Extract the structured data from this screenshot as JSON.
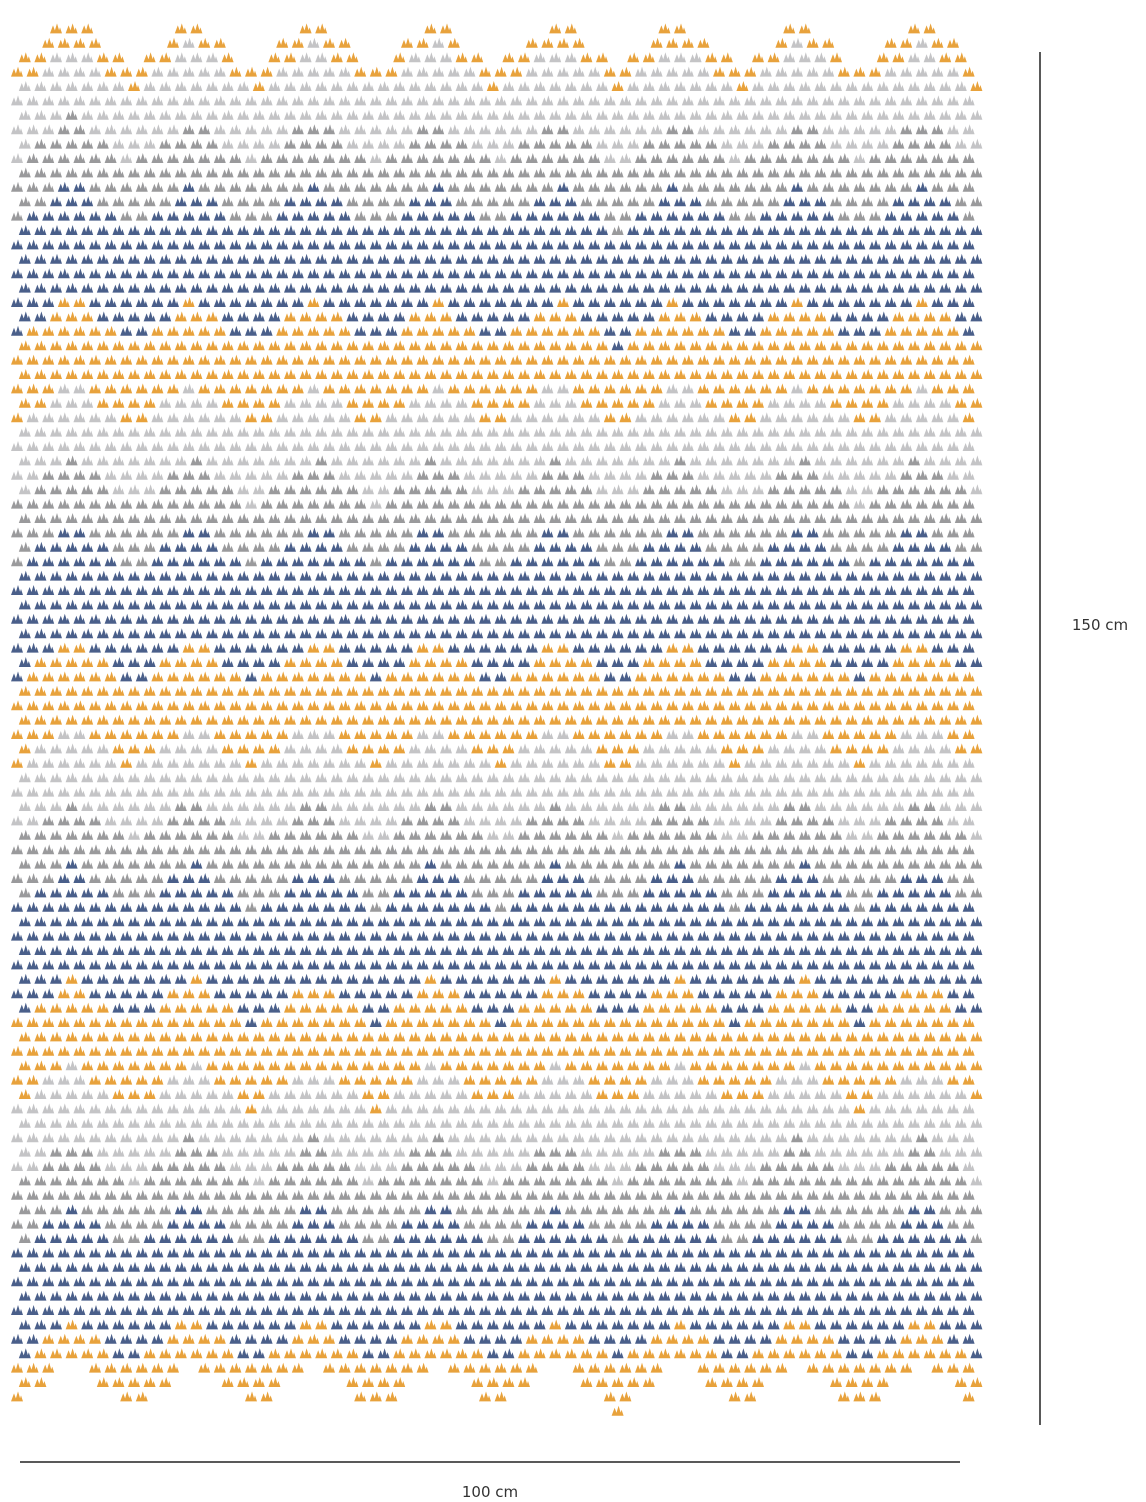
{
  "height_label": "150 cm",
  "width_label": "100 cm"
}
